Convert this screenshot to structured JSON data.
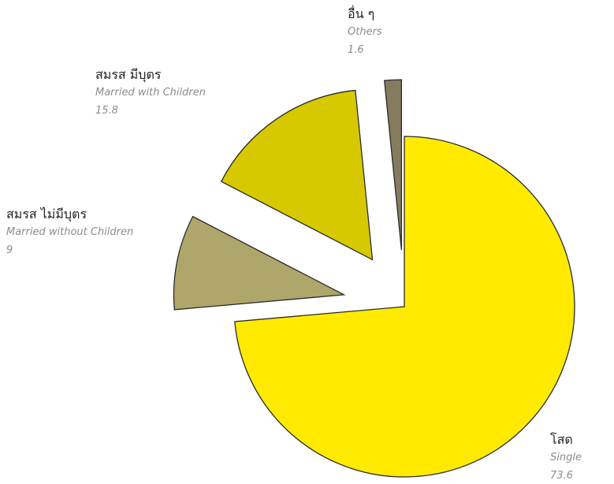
{
  "chart_data": {
    "type": "pie",
    "title": "",
    "legend": "none",
    "slices": [
      {
        "label_th": "โสด",
        "label_en": "Single",
        "value": 73.6,
        "display_value": "73.6",
        "color": "#ffea00"
      },
      {
        "label_th": "สมรส ไม่มีบุตร",
        "label_en": "Married without Children",
        "value": 9,
        "display_value": "9",
        "color": "#aea66a"
      },
      {
        "label_th": "สมรส มีบุตร",
        "label_en": "Married with Children",
        "value": 15.8,
        "display_value": "15.8",
        "color": "#d6c900"
      },
      {
        "label_th": "อื่น ๆ",
        "label_en": "Others",
        "value": 1.6,
        "display_value": "1.6",
        "color": "#857c60"
      }
    ]
  }
}
